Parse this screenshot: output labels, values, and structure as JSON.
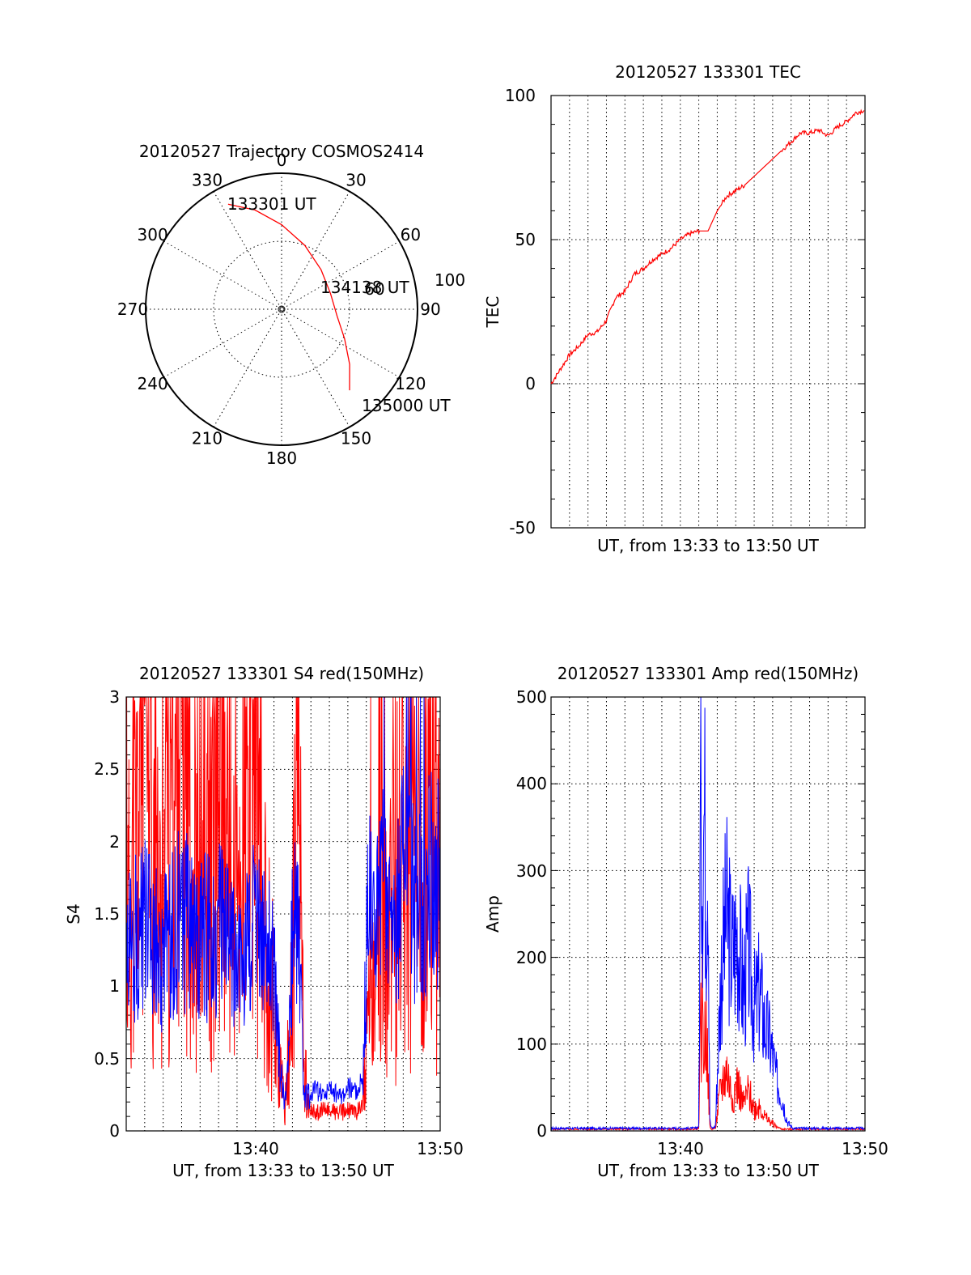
{
  "chart_data": [
    {
      "id": "trajectory",
      "type": "polar",
      "title": "20120527 Trajectory COSMOS2414",
      "angle_labels": [
        "0",
        "30",
        "60",
        "90",
        "120",
        "150",
        "180",
        "210",
        "240",
        "270",
        "300",
        "330"
      ],
      "radial_labels": [
        "60",
        "100"
      ],
      "series": [
        {
          "color": "#ff0000",
          "points": [
            {
              "az": 333,
              "el": 12
            },
            {
              "az": 345,
              "el": 22
            },
            {
              "az": 0,
              "el": 34
            },
            {
              "az": 20,
              "el": 45
            },
            {
              "az": 45,
              "el": 53
            },
            {
              "az": 72,
              "el": 56
            },
            {
              "az": 97,
              "el": 53
            },
            {
              "az": 115,
              "el": 44
            },
            {
              "az": 129,
              "el": 32
            },
            {
              "az": 140,
              "el": 20
            }
          ]
        }
      ],
      "annotations": [
        "133301 UT",
        "134138 UT",
        "135000 UT"
      ]
    },
    {
      "id": "tec",
      "type": "line",
      "title": "20120527 133301 TEC",
      "xlabel": "UT, from 13:33 to 13:50 UT",
      "ylabel": "TEC",
      "ylim": [
        -50,
        100
      ],
      "yticks": [
        "100",
        "50",
        "0",
        "-50"
      ],
      "x_range_minutes": [
        0,
        17
      ],
      "series": [
        {
          "color": "#ff0000",
          "x": [
            0,
            0.5,
            1,
            1.5,
            2,
            2.5,
            3,
            3.5,
            4,
            4.5,
            5,
            5.5,
            6,
            6.5,
            7,
            7.5,
            8,
            8.5,
            9,
            9.5,
            10,
            10.5,
            11,
            11.5,
            12,
            12.5,
            13,
            13.5,
            14,
            14.5,
            15,
            15.5,
            16,
            16.5,
            17
          ],
          "y": [
            0,
            5,
            10,
            13,
            17,
            18,
            22,
            30,
            32,
            38,
            40,
            43,
            45,
            47,
            50,
            52,
            53,
            53,
            60,
            65,
            67,
            69,
            72,
            75,
            78,
            81,
            84,
            87,
            87,
            88,
            86,
            89,
            91,
            94,
            95
          ]
        }
      ]
    },
    {
      "id": "s4",
      "type": "line",
      "title": "20120527 133301 S4 red(150MHz)",
      "xlabel": "UT, from 13:33 to 13:50 UT",
      "ylabel": "S4",
      "ylim": [
        0,
        3
      ],
      "yticks": [
        "3",
        "2.5",
        "2",
        "1.5",
        "1",
        "0.5",
        "0"
      ],
      "xticks": [
        "13:40",
        "13:50"
      ],
      "x_range_minutes": [
        0,
        17
      ],
      "series": [
        {
          "color": "#ff0000",
          "x": [
            0,
            1,
            2,
            3,
            4,
            5,
            6,
            7,
            7.5,
            8,
            8.3,
            8.6,
            9,
            9.3,
            9.6,
            9.9,
            10.2,
            10.6,
            11,
            11.5,
            12,
            12.5,
            12.8,
            13.1,
            13.4,
            14,
            14.5,
            15,
            15.5,
            16,
            16.5,
            17
          ],
          "y": [
            1.3,
            2.6,
            1.2,
            3.0,
            1.1,
            2.2,
            1.4,
            2.7,
            1.3,
            0.9,
            0.4,
            0.15,
            1.0,
            2.9,
            0.5,
            0.15,
            0.12,
            0.14,
            0.15,
            0.12,
            0.14,
            0.13,
            0.2,
            0.7,
            1.0,
            1.2,
            1.4,
            2.2,
            1.8,
            1.3,
            2.4,
            1.5
          ]
        },
        {
          "color": "#0000ff",
          "x": [
            0,
            1,
            2,
            3,
            4,
            5,
            6,
            7,
            7.5,
            8,
            8.3,
            8.6,
            9,
            9.3,
            9.6,
            9.9,
            10.2,
            10.6,
            11,
            11.5,
            12,
            12.5,
            12.8,
            13.1,
            13.4,
            14,
            14.5,
            15,
            15.5,
            16,
            16.5,
            17
          ],
          "y": [
            1.3,
            1.4,
            1.2,
            1.5,
            1.3,
            1.4,
            1.2,
            1.4,
            1.3,
            1.1,
            0.5,
            0.18,
            1.3,
            1.5,
            0.3,
            0.22,
            0.28,
            0.25,
            0.3,
            0.24,
            0.3,
            0.28,
            0.35,
            1.5,
            1.6,
            1.7,
            1.5,
            1.8,
            1.6,
            1.5,
            1.9,
            1.7
          ]
        }
      ]
    },
    {
      "id": "amp",
      "type": "line",
      "title": "20120527 133301 Amp red(150MHz)",
      "xlabel": "UT, from 13:33 to 13:50 UT",
      "ylabel": "Amp",
      "ylim": [
        0,
        500
      ],
      "yticks": [
        "500",
        "400",
        "300",
        "200",
        "100",
        "0"
      ],
      "xticks": [
        "13:40",
        "13:50"
      ],
      "x_range_minutes": [
        0,
        17
      ],
      "series": [
        {
          "color": "#ff0000",
          "x": [
            0,
            7.8,
            8,
            8.1,
            8.2,
            8.3,
            8.4,
            8.5,
            8.6,
            8.7,
            8.9,
            9.2,
            9.5,
            9.8,
            10.1,
            10.4,
            10.7,
            11,
            11.3,
            11.6,
            11.9,
            12.2,
            12.5,
            12.8,
            13.1,
            17
          ],
          "y": [
            2,
            2,
            3,
            110,
            140,
            90,
            130,
            60,
            4,
            2,
            3,
            50,
            70,
            40,
            55,
            30,
            45,
            25,
            30,
            15,
            10,
            5,
            2,
            2,
            2,
            2
          ]
        },
        {
          "color": "#0000ff",
          "x": [
            0,
            7.8,
            8,
            8.1,
            8.2,
            8.3,
            8.4,
            8.5,
            8.6,
            8.7,
            8.9,
            9.2,
            9.5,
            9.8,
            10.1,
            10.4,
            10.7,
            11,
            11.3,
            11.6,
            11.9,
            12.2,
            12.5,
            12.8,
            13.1,
            17
          ],
          "y": [
            3,
            3,
            5,
            410,
            320,
            380,
            280,
            360,
            10,
            3,
            5,
            180,
            250,
            200,
            230,
            160,
            210,
            140,
            160,
            120,
            100,
            60,
            40,
            10,
            3,
            3
          ]
        }
      ]
    }
  ]
}
